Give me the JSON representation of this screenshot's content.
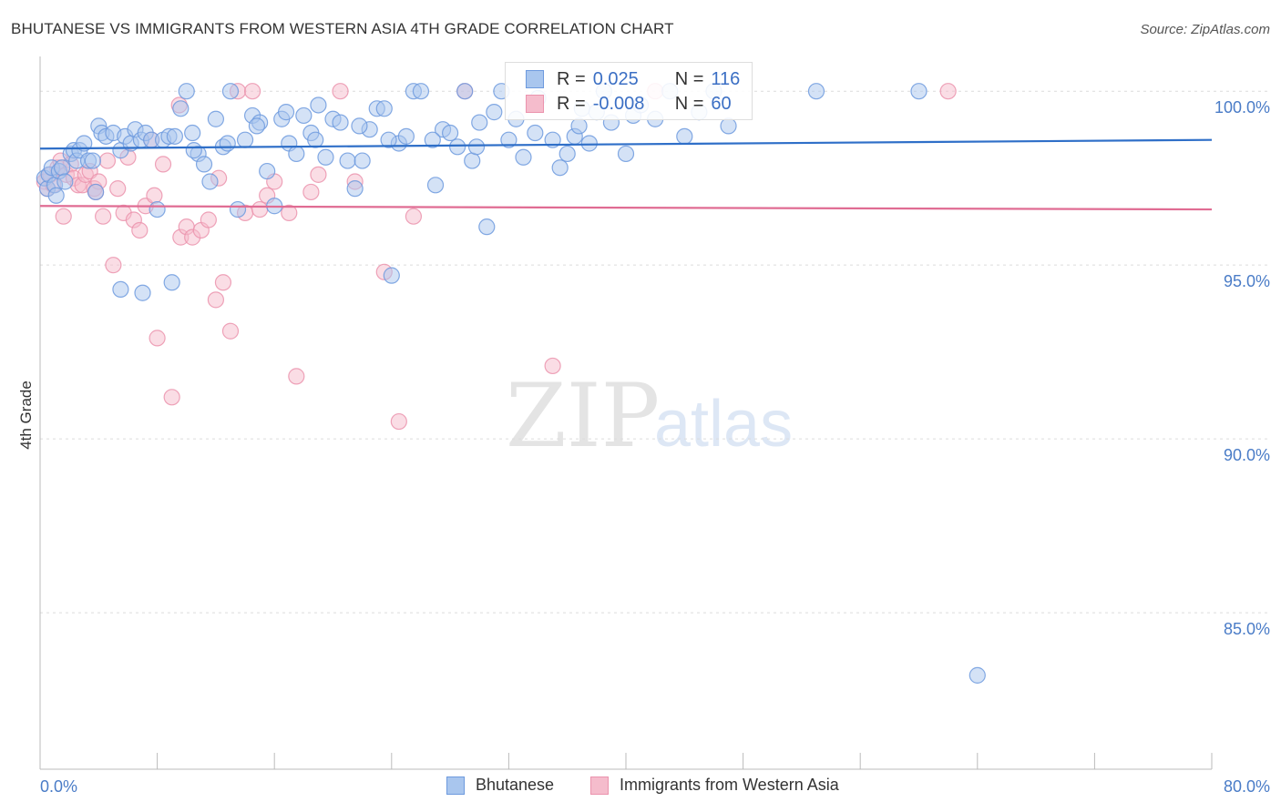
{
  "title": "BHUTANESE VS IMMIGRANTS FROM WESTERN ASIA 4TH GRADE CORRELATION CHART",
  "source": "Source: ZipAtlas.com",
  "watermark": {
    "zip": "ZIP",
    "atlas": "atlas"
  },
  "legend": {
    "series1": {
      "r_label": "R =",
      "r_value": "0.025",
      "n_label": "N =",
      "n_value": "116"
    },
    "series2": {
      "r_label": "R =",
      "r_value": "-0.008",
      "n_label": "N =",
      "n_value": "60"
    }
  },
  "chart_data": {
    "type": "scatter",
    "title": "BHUTANESE VS IMMIGRANTS FROM WESTERN ASIA 4TH GRADE CORRELATION CHART",
    "xlabel": "",
    "ylabel": "4th Grade",
    "xlim": [
      0,
      80
    ],
    "ylim": [
      80.5,
      101.0
    ],
    "x_tick_labels": {
      "left": "0.0%",
      "right": "80.0%"
    },
    "y_ticks": [
      {
        "value": 100,
        "label": "100.0%"
      },
      {
        "value": 95,
        "label": "95.0%"
      },
      {
        "value": 90,
        "label": "90.0%"
      },
      {
        "value": 85,
        "label": "85.0%"
      }
    ],
    "colors": {
      "series1_fill": "#a9c6ee",
      "series1_stroke": "#6d9ade",
      "series1_line": "#2f6fc8",
      "series2_fill": "#f5bccc",
      "series2_stroke": "#eb93ad",
      "series2_line": "#e06c93"
    },
    "series": [
      {
        "name": "Bhutanese",
        "trend": {
          "x0": 0,
          "y0": 98.35,
          "x1": 80,
          "y1": 98.6
        },
        "points": [
          [
            0.3,
            97.5
          ],
          [
            0.5,
            97.2
          ],
          [
            0.6,
            97.6
          ],
          [
            0.8,
            97.8
          ],
          [
            1.0,
            97.3
          ],
          [
            1.1,
            97.0
          ],
          [
            1.3,
            97.7
          ],
          [
            1.5,
            97.8
          ],
          [
            1.7,
            97.4
          ],
          [
            2.1,
            98.2
          ],
          [
            2.3,
            98.3
          ],
          [
            2.5,
            98.0
          ],
          [
            2.7,
            98.3
          ],
          [
            3.0,
            98.5
          ],
          [
            3.3,
            98.0
          ],
          [
            3.6,
            98.0
          ],
          [
            3.8,
            97.1
          ],
          [
            4.0,
            99.0
          ],
          [
            4.2,
            98.8
          ],
          [
            4.5,
            98.7
          ],
          [
            5.0,
            98.8
          ],
          [
            5.5,
            98.3
          ],
          [
            5.8,
            98.7
          ],
          [
            6.2,
            98.5
          ],
          [
            6.5,
            98.9
          ],
          [
            6.9,
            98.6
          ],
          [
            7.2,
            98.8
          ],
          [
            7.6,
            98.6
          ],
          [
            8.0,
            96.6
          ],
          [
            8.4,
            98.6
          ],
          [
            8.8,
            98.7
          ],
          [
            9.2,
            98.7
          ],
          [
            9.6,
            99.5
          ],
          [
            10.0,
            100.0
          ],
          [
            10.4,
            98.8
          ],
          [
            10.8,
            98.2
          ],
          [
            11.2,
            97.9
          ],
          [
            11.6,
            97.4
          ],
          [
            12.0,
            99.2
          ],
          [
            12.5,
            98.4
          ],
          [
            13.0,
            100.0
          ],
          [
            13.5,
            96.6
          ],
          [
            14.0,
            98.6
          ],
          [
            14.5,
            99.3
          ],
          [
            15.0,
            99.1
          ],
          [
            15.5,
            97.7
          ],
          [
            16.0,
            96.7
          ],
          [
            16.5,
            99.2
          ],
          [
            17.0,
            98.5
          ],
          [
            17.5,
            98.2
          ],
          [
            18.0,
            99.3
          ],
          [
            18.5,
            98.8
          ],
          [
            19.0,
            99.6
          ],
          [
            19.5,
            98.1
          ],
          [
            20.0,
            99.2
          ],
          [
            20.5,
            99.1
          ],
          [
            21.0,
            98.0
          ],
          [
            21.5,
            97.2
          ],
          [
            22.0,
            98.0
          ],
          [
            22.5,
            98.9
          ],
          [
            23.0,
            99.5
          ],
          [
            23.5,
            99.5
          ],
          [
            24.0,
            94.7
          ],
          [
            24.5,
            98.5
          ],
          [
            25.0,
            98.7
          ],
          [
            25.5,
            100.0
          ],
          [
            26.0,
            100.0
          ],
          [
            27.0,
            97.3
          ],
          [
            27.5,
            98.9
          ],
          [
            28.0,
            98.8
          ],
          [
            28.5,
            98.4
          ],
          [
            29.0,
            100.0
          ],
          [
            29.5,
            98.0
          ],
          [
            30.0,
            99.1
          ],
          [
            30.5,
            96.1
          ],
          [
            31.0,
            99.4
          ],
          [
            31.5,
            100.0
          ],
          [
            32.0,
            98.6
          ],
          [
            32.5,
            99.2
          ],
          [
            33.0,
            98.1
          ],
          [
            34.0,
            99.8
          ],
          [
            35.0,
            98.6
          ],
          [
            35.5,
            97.8
          ],
          [
            36.0,
            98.2
          ],
          [
            36.5,
            98.7
          ],
          [
            37.0,
            99.5
          ],
          [
            37.5,
            98.5
          ],
          [
            38.0,
            99.4
          ],
          [
            38.5,
            100.0
          ],
          [
            39.0,
            99.1
          ],
          [
            40.0,
            98.2
          ],
          [
            40.5,
            99.3
          ],
          [
            41.0,
            99.6
          ],
          [
            42.0,
            99.2
          ],
          [
            43.0,
            100.0
          ],
          [
            44.0,
            98.7
          ],
          [
            45.0,
            99.4
          ],
          [
            46.0,
            100.0
          ],
          [
            47.0,
            99.0
          ],
          [
            53.0,
            100.0
          ],
          [
            60.0,
            100.0
          ],
          [
            64.0,
            83.2
          ],
          [
            5.5,
            94.3
          ],
          [
            7.0,
            94.2
          ],
          [
            9.0,
            94.5
          ],
          [
            10.5,
            98.3
          ],
          [
            12.8,
            98.5
          ],
          [
            14.8,
            99.0
          ],
          [
            16.8,
            99.4
          ],
          [
            18.8,
            98.6
          ],
          [
            21.8,
            99.0
          ],
          [
            23.8,
            98.6
          ],
          [
            26.8,
            98.6
          ],
          [
            29.8,
            98.4
          ],
          [
            33.8,
            98.8
          ],
          [
            36.8,
            99.0
          ]
        ]
      },
      {
        "name": "Immigrants from Western Asia",
        "trend": {
          "x0": 0,
          "y0": 96.7,
          "x1": 80,
          "y1": 96.6
        },
        "points": [
          [
            0.3,
            97.4
          ],
          [
            0.5,
            97.2
          ],
          [
            0.7,
            97.6
          ],
          [
            0.9,
            97.3
          ],
          [
            1.2,
            97.8
          ],
          [
            1.4,
            98.0
          ],
          [
            1.6,
            96.4
          ],
          [
            1.8,
            97.6
          ],
          [
            2.1,
            97.9
          ],
          [
            2.3,
            97.5
          ],
          [
            2.6,
            97.3
          ],
          [
            2.9,
            97.3
          ],
          [
            3.1,
            97.6
          ],
          [
            3.4,
            97.7
          ],
          [
            3.7,
            97.2
          ],
          [
            4.0,
            97.4
          ],
          [
            4.3,
            96.4
          ],
          [
            4.6,
            98.0
          ],
          [
            5.0,
            95.0
          ],
          [
            5.3,
            97.2
          ],
          [
            5.7,
            96.5
          ],
          [
            6.0,
            98.1
          ],
          [
            6.4,
            96.3
          ],
          [
            6.8,
            96.0
          ],
          [
            7.2,
            96.7
          ],
          [
            7.6,
            98.6
          ],
          [
            8.0,
            92.9
          ],
          [
            8.4,
            97.9
          ],
          [
            9.0,
            91.2
          ],
          [
            9.6,
            95.8
          ],
          [
            10.0,
            96.1
          ],
          [
            10.4,
            95.8
          ],
          [
            11.0,
            96.0
          ],
          [
            11.5,
            96.3
          ],
          [
            12.0,
            94.0
          ],
          [
            12.5,
            94.5
          ],
          [
            13.0,
            93.1
          ],
          [
            13.5,
            100.0
          ],
          [
            14.0,
            96.5
          ],
          [
            15.0,
            96.6
          ],
          [
            15.5,
            97.0
          ],
          [
            16.0,
            97.4
          ],
          [
            17.0,
            96.5
          ],
          [
            17.5,
            91.8
          ],
          [
            18.5,
            97.1
          ],
          [
            19.0,
            97.6
          ],
          [
            20.5,
            100.0
          ],
          [
            21.5,
            97.4
          ],
          [
            23.5,
            94.8
          ],
          [
            24.5,
            90.5
          ],
          [
            25.5,
            96.4
          ],
          [
            29.0,
            100.0
          ],
          [
            35.0,
            92.1
          ],
          [
            42.0,
            100.0
          ],
          [
            62.0,
            100.0
          ],
          [
            3.8,
            97.1
          ],
          [
            7.8,
            97.0
          ],
          [
            9.5,
            99.6
          ],
          [
            12.2,
            97.5
          ],
          [
            14.5,
            100.0
          ]
        ]
      }
    ]
  },
  "bottom_legend": {
    "series1": "Bhutanese",
    "series2": "Immigrants from Western Asia"
  }
}
